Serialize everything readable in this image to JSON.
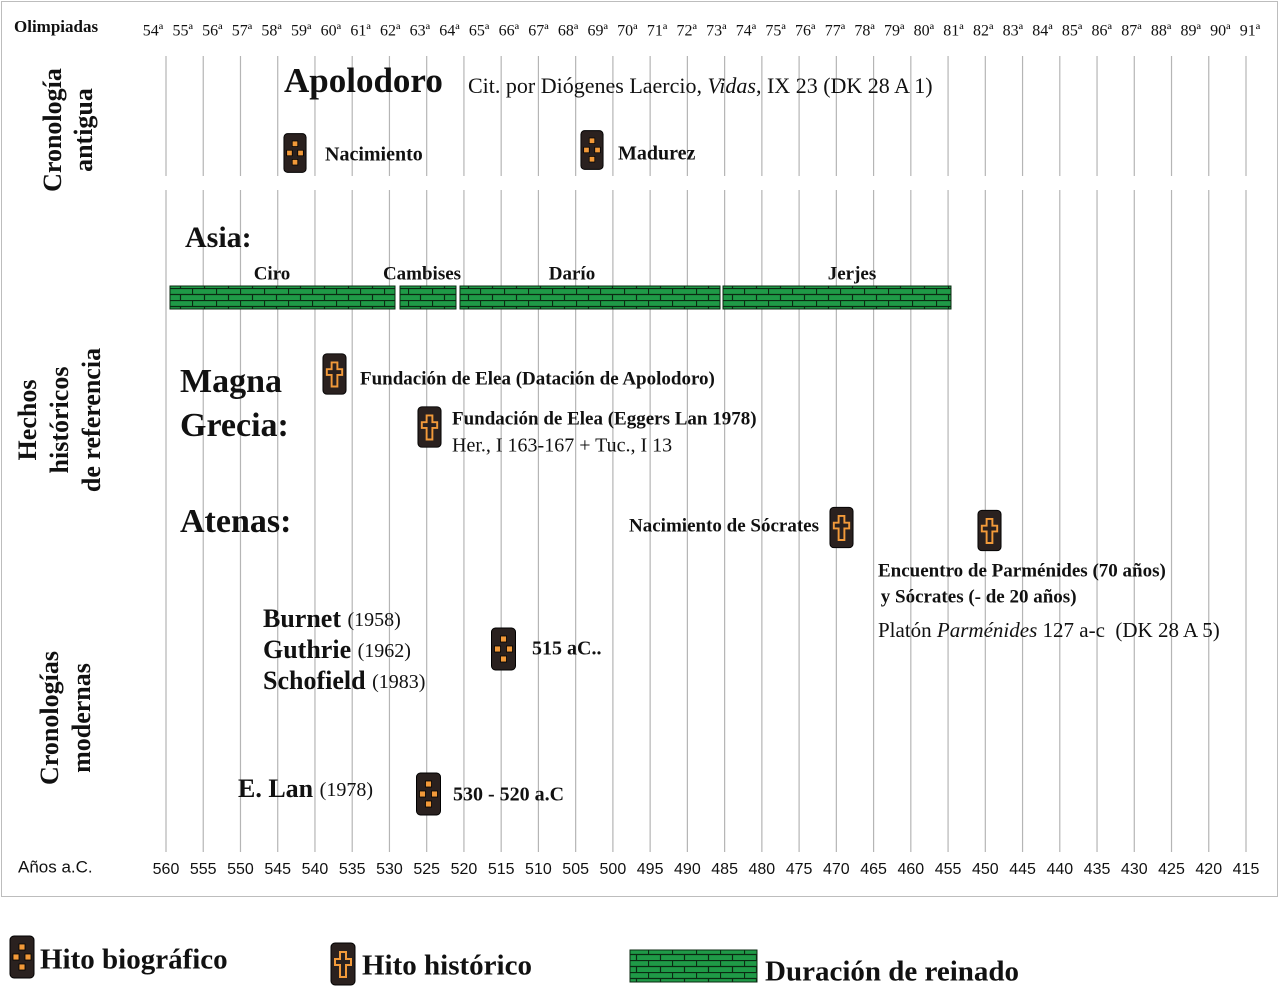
{
  "header": {
    "label": "Olimpiadas",
    "olympiads": [
      "54ª",
      "55ª",
      "56ª",
      "57ª",
      "58ª",
      "59ª",
      "60ª",
      "61ª",
      "62ª",
      "63ª",
      "64ª",
      "65ª",
      "66ª",
      "67ª",
      "68ª",
      "69ª",
      "70ª",
      "71ª",
      "72ª",
      "73ª",
      "74ª",
      "75ª",
      "76ª",
      "77ª",
      "78ª",
      "79ª",
      "80ª",
      "81ª",
      "82ª",
      "83ª",
      "84ª",
      "85ª",
      "86ª",
      "87ª",
      "88ª",
      "89ª",
      "90ª",
      "91ª"
    ]
  },
  "footer": {
    "label": "Años a.C.",
    "years": [
      560,
      555,
      550,
      545,
      540,
      535,
      530,
      525,
      520,
      515,
      510,
      505,
      500,
      495,
      490,
      485,
      480,
      475,
      470,
      465,
      460,
      455,
      450,
      445,
      440,
      435,
      430,
      425,
      420,
      415
    ]
  },
  "ancient": {
    "heading": [
      "Cronología",
      "antigua"
    ],
    "author": "Apolodoro",
    "source": [
      "Cit. por  Diógenes Laercio, ",
      "Vidas",
      ", IX 23  (DK 28 A 1)"
    ],
    "events": [
      "Nacimiento",
      "Madurez"
    ]
  },
  "history": {
    "heading": [
      "Hechos",
      "históricos",
      "de referencia"
    ],
    "asia": {
      "label": "Asia:",
      "reigns": [
        "Ciro",
        "Cambises",
        "Darío",
        "Jerjes"
      ]
    },
    "magna_grecia": {
      "label": [
        "Magna",
        "Grecia:"
      ],
      "events": [
        {
          "title": "Fundación de Elea  (Datación de Apolodoro)"
        },
        {
          "title": "Fundación de Elea  (Eggers Lan 1978)",
          "source": "Her., I 163-167 + Tuc., I 13"
        }
      ]
    },
    "athens": {
      "label": "Atenas:",
      "events": [
        {
          "title": "Nacimiento de Sócrates"
        },
        {
          "title": [
            "Encuentro de Parménides (70 años)",
            " y Sócrates (- de 20 años)"
          ],
          "source": [
            "Platón ",
            "Parménides",
            " 127 a-c  (DK 28 A 5)"
          ]
        }
      ]
    }
  },
  "modern": {
    "heading": [
      "Cronologías",
      "modernas"
    ],
    "groups": [
      {
        "authors": [
          {
            "name": "Burnet",
            "year": "(1958)"
          },
          {
            "name": "Guthrie",
            "year": "(1962)"
          },
          {
            "name": "Schofield",
            "year": "(1983)"
          }
        ],
        "date": "515 aC.."
      },
      {
        "authors": [
          {
            "name": "E. Lan",
            "year": "(1978)"
          }
        ],
        "date": "530 - 520 a.C"
      }
    ]
  },
  "legend": [
    "Hito biográfico",
    "Hito histórico",
    "Duración de reinado"
  ]
}
